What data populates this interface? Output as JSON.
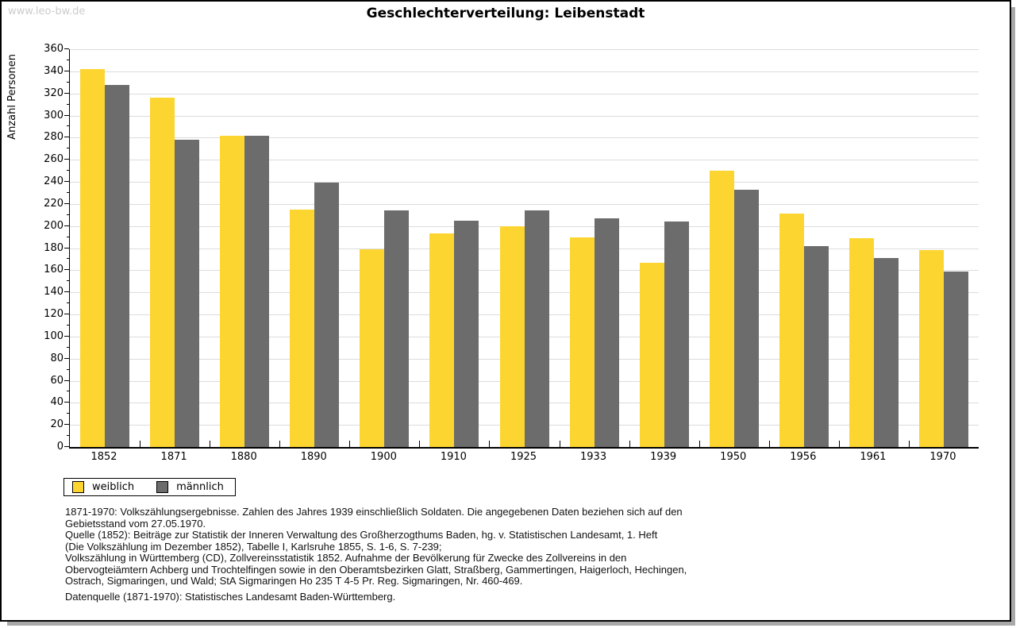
{
  "watermark": "www.leo-bw.de",
  "chart_data": {
    "type": "bar",
    "title": "Geschlechterverteilung: Leibenstadt",
    "xlabel": "",
    "ylabel": "Anzahl Personen",
    "ylim": [
      0,
      360
    ],
    "ytick_step": 20,
    "ytick_minor_step": 10,
    "grid": true,
    "legend_position": "bottom-left",
    "categories": [
      "1852",
      "1871",
      "1880",
      "1890",
      "1900",
      "1910",
      "1925",
      "1933",
      "1939",
      "1950",
      "1956",
      "1961",
      "1970"
    ],
    "series": [
      {
        "name": "weiblich",
        "color": "#FCD531",
        "values": [
          342,
          316,
          282,
          215,
          179,
          193,
          200,
          190,
          167,
          250,
          211,
          189,
          178
        ]
      },
      {
        "name": "männlich",
        "color": "#6C6C6C",
        "values": [
          328,
          278,
          282,
          239,
          214,
          205,
          214,
          207,
          204,
          233,
          182,
          171,
          159
        ]
      }
    ]
  },
  "footer": {
    "lines": [
      "1871-1970: Volkszählungsergebnisse. Zahlen des Jahres 1939 einschließlich Soldaten. Die angegebenen Daten beziehen sich auf den",
      "Gebietsstand vom 27.05.1970.",
      "Quelle (1852): Beiträge zur Statistik der Inneren Verwaltung des Großherzogthums Baden, hg. v. Statistischen Landesamt, 1. Heft",
      "(Die Volkszählung im Dezember 1852), Tabelle I, Karlsruhe 1855, S. 1-6, S. 7-239;",
      "Volkszählung in Württemberg (CD), Zollvereinsstatistik 1852. Aufnahme der Bevölkerung für Zwecke des Zollvereins in den",
      "Obervogteiämtern Achberg und Trochtelfingen sowie in den Oberamtsbezirken Glatt, Straßberg, Gammertingen, Haigerloch, Hechingen,",
      "Ostrach, Sigmaringen, und Wald; StA Sigmaringen Ho 235 T 4-5 Pr. Reg. Sigmaringen, Nr. 460-469."
    ],
    "datasource": "Datenquelle (1871-1970): Statistisches Landesamt Baden-Württemberg."
  },
  "colors": {
    "bar_weiblich": "#FCD531",
    "bar_maennlich": "#6C6C6C",
    "gridline": "#DCDCDC",
    "watermark": "#CCCCCC",
    "frame_shadow": "#A8A8A8"
  }
}
